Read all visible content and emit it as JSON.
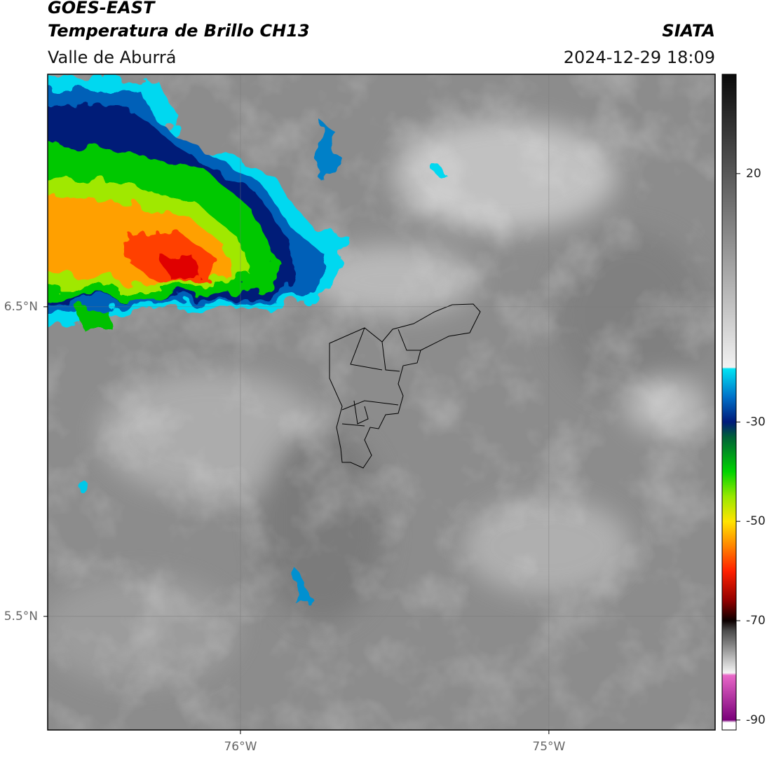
{
  "header": {
    "title": "GOES-EAST",
    "subtitle": "Temperatura de Brillo CH13",
    "region": "Valle de Aburrá",
    "source": "SIATA",
    "timestamp": "2024-12-29 18:09"
  },
  "map": {
    "xlim": [
      -76.625,
      -74.461
    ],
    "ylim": [
      5.133,
      7.251
    ],
    "xticks": [
      {
        "value": -76,
        "label": "76°W"
      },
      {
        "value": -75,
        "label": "75°W"
      }
    ],
    "yticks": [
      {
        "value": 6.5,
        "label": "6.5°N"
      },
      {
        "value": 5.5,
        "label": "5.5°N"
      }
    ],
    "grid": true
  },
  "colorbar": {
    "lim": [
      -92,
      40
    ],
    "ticks": [
      20,
      -30,
      -50,
      -70,
      -90
    ],
    "stops": [
      {
        "value": 40,
        "color": "#0a0a0a"
      },
      {
        "value": 20,
        "color": "#585858"
      },
      {
        "value": 0,
        "color": "#a8a8a8"
      },
      {
        "value": -19,
        "color": "#f2f2f2"
      },
      {
        "value": -19.3,
        "color": "#00e4f4"
      },
      {
        "value": -25,
        "color": "#0070c8"
      },
      {
        "value": -30,
        "color": "#001a7a"
      },
      {
        "value": -33,
        "color": "#006038"
      },
      {
        "value": -40,
        "color": "#00d400"
      },
      {
        "value": -45,
        "color": "#98e800"
      },
      {
        "value": -50,
        "color": "#ffe400"
      },
      {
        "value": -55,
        "color": "#ff8400"
      },
      {
        "value": -60,
        "color": "#ff2000"
      },
      {
        "value": -66,
        "color": "#900000"
      },
      {
        "value": -70,
        "color": "#0c0000"
      },
      {
        "value": -72,
        "color": "#4a4a4a"
      },
      {
        "value": -78,
        "color": "#c4c4c4"
      },
      {
        "value": -80.5,
        "color": "#f4f4f4"
      },
      {
        "value": -81,
        "color": "#e868c8"
      },
      {
        "value": -90,
        "color": "#7a007a"
      },
      {
        "value": -90.5,
        "color": "#ffffff"
      },
      {
        "value": -92,
        "color": "#ffffff"
      }
    ]
  }
}
